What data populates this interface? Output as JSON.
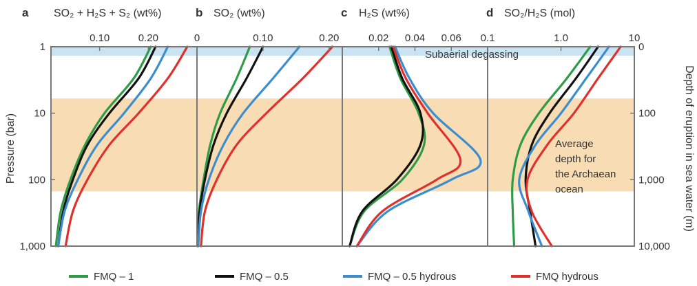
{
  "colors": {
    "subaerial_band": "#c9e3f2",
    "archaean_band": "#f8dcb4",
    "frame": "#777777",
    "series": {
      "FMQ - 1": "#2e9b46",
      "FMQ - 0.5": "#111111",
      "FMQ - 0.5 hydrous": "#3a8ecf",
      "FMQ hydrous": "#e0302c"
    }
  },
  "chart_data": {
    "type": "line",
    "y_axis_left": {
      "label": "Pressure (bar)",
      "scale": "log",
      "range": [
        1,
        1000
      ],
      "inverted": true,
      "ticks": [
        "1",
        "10",
        "100",
        "1,000"
      ]
    },
    "y_axis_right": {
      "label": "Depth of eruption in sea water (m)",
      "scale": "log",
      "range": [
        0,
        10000
      ],
      "ticks": [
        "0",
        "100",
        "1,000",
        "10,000"
      ]
    },
    "bands": [
      {
        "label": "Subaerial degassing",
        "pressure_range": [
          1,
          1.3
        ]
      },
      {
        "label": "Average depth for the Archaean ocean",
        "pressure_range": [
          6,
          150
        ]
      }
    ],
    "legend": {
      "placement": "bottom",
      "entries": [
        "FMQ – 1",
        "FMQ – 0.5",
        "FMQ – 0.5 hydrous",
        "FMQ hydrous"
      ]
    },
    "panels": [
      {
        "letter": "a",
        "title": "SO₂ + H₂S + S₂ (wt%)",
        "x_range": [
          0,
          0.3
        ],
        "x_scale": "linear",
        "x_ticks": [
          0.1,
          0.2
        ],
        "x_tick_labels": [
          "0.10",
          "0.20"
        ],
        "series": [
          {
            "name": "FMQ - 1",
            "points": [
              [
                0.205,
                1
              ],
              [
                0.17,
                3
              ],
              [
                0.11,
                10
              ],
              [
                0.07,
                30
              ],
              [
                0.04,
                100
              ],
              [
                0.02,
                300
              ],
              [
                0.01,
                1000
              ]
            ]
          },
          {
            "name": "FMQ - 0.5",
            "points": [
              [
                0.215,
                1
              ],
              [
                0.18,
                3
              ],
              [
                0.12,
                10
              ],
              [
                0.075,
                30
              ],
              [
                0.045,
                100
              ],
              [
                0.025,
                300
              ],
              [
                0.015,
                1000
              ]
            ]
          },
          {
            "name": "FMQ - 0.5 hydrous",
            "points": [
              [
                0.24,
                1
              ],
              [
                0.205,
                3
              ],
              [
                0.15,
                10
              ],
              [
                0.095,
                30
              ],
              [
                0.055,
                100
              ],
              [
                0.028,
                300
              ],
              [
                0.015,
                1000
              ]
            ]
          },
          {
            "name": "FMQ hydrous",
            "points": [
              [
                0.28,
                1
              ],
              [
                0.24,
                3
              ],
              [
                0.18,
                10
              ],
              [
                0.12,
                30
              ],
              [
                0.075,
                100
              ],
              [
                0.045,
                300
              ],
              [
                0.03,
                1000
              ]
            ]
          }
        ]
      },
      {
        "letter": "b",
        "title": "SO₂ (wt%)",
        "x_range": [
          0,
          0.22
        ],
        "x_scale": "linear",
        "x_ticks": [
          0,
          0.1,
          0.2
        ],
        "x_tick_labels": [
          "0",
          "0.10",
          "0.20"
        ],
        "series": [
          {
            "name": "FMQ - 1",
            "points": [
              [
                0.08,
                1
              ],
              [
                0.06,
                3
              ],
              [
                0.035,
                10
              ],
              [
                0.02,
                30
              ],
              [
                0.01,
                100
              ],
              [
                0.003,
                300
              ],
              [
                0.001,
                1000
              ]
            ]
          },
          {
            "name": "FMQ - 0.5",
            "points": [
              [
                0.1,
                1
              ],
              [
                0.075,
                3
              ],
              [
                0.045,
                10
              ],
              [
                0.025,
                30
              ],
              [
                0.012,
                100
              ],
              [
                0.004,
                300
              ],
              [
                0.001,
                1000
              ]
            ]
          },
          {
            "name": "FMQ - 0.5 hydrous",
            "points": [
              [
                0.155,
                1
              ],
              [
                0.115,
                3
              ],
              [
                0.07,
                10
              ],
              [
                0.04,
                30
              ],
              [
                0.018,
                100
              ],
              [
                0.006,
                300
              ],
              [
                0.002,
                1000
              ]
            ]
          },
          {
            "name": "FMQ hydrous",
            "points": [
              [
                0.205,
                1
              ],
              [
                0.16,
                3
              ],
              [
                0.105,
                10
              ],
              [
                0.06,
                30
              ],
              [
                0.03,
                100
              ],
              [
                0.012,
                300
              ],
              [
                0.006,
                1000
              ]
            ]
          }
        ]
      },
      {
        "letter": "c",
        "title": "H₂S (wt%)",
        "x_range": [
          0.0,
          0.08
        ],
        "x_scale": "linear",
        "x_ticks": [
          0.02,
          0.04,
          0.06
        ],
        "x_tick_labels": [
          "0.02",
          "0.04",
          "0.06"
        ],
        "series": [
          {
            "name": "FMQ - 1",
            "points": [
              [
                0.026,
                1
              ],
              [
                0.032,
                3
              ],
              [
                0.042,
                10
              ],
              [
                0.045,
                30
              ],
              [
                0.033,
                100
              ],
              [
                0.012,
                300
              ],
              [
                0.004,
                1000
              ]
            ]
          },
          {
            "name": "FMQ - 0.5",
            "points": [
              [
                0.027,
                1
              ],
              [
                0.033,
                3
              ],
              [
                0.043,
                10
              ],
              [
                0.043,
                30
              ],
              [
                0.03,
                100
              ],
              [
                0.011,
                300
              ],
              [
                0.004,
                1000
              ]
            ]
          },
          {
            "name": "FMQ - 0.5 hydrous",
            "points": [
              [
                0.029,
                1
              ],
              [
                0.037,
                3
              ],
              [
                0.05,
                10
              ],
              [
                0.076,
                50
              ],
              [
                0.06,
                100
              ],
              [
                0.025,
                300
              ],
              [
                0.008,
                1000
              ]
            ]
          },
          {
            "name": "FMQ hydrous",
            "points": [
              [
                0.028,
                1
              ],
              [
                0.035,
                3
              ],
              [
                0.047,
                10
              ],
              [
                0.065,
                50
              ],
              [
                0.052,
                100
              ],
              [
                0.022,
                300
              ],
              [
                0.008,
                1000
              ]
            ]
          }
        ]
      },
      {
        "letter": "d",
        "title": "SO₂/H₂S (mol)",
        "x_range": [
          0.1,
          10
        ],
        "x_scale": "log",
        "x_ticks": [
          0.1,
          1,
          10
        ],
        "x_tick_labels": [
          "0.1",
          "1.0",
          "10"
        ],
        "series": [
          {
            "name": "FMQ - 1",
            "points": [
              [
                2.5,
                1
              ],
              [
                1.2,
                3
              ],
              [
                0.5,
                10
              ],
              [
                0.28,
                30
              ],
              [
                0.22,
                100
              ],
              [
                0.22,
                300
              ],
              [
                0.23,
                1000
              ]
            ]
          },
          {
            "name": "FMQ - 0.5",
            "points": [
              [
                3.2,
                1
              ],
              [
                1.6,
                3
              ],
              [
                0.7,
                10
              ],
              [
                0.4,
                30
              ],
              [
                0.33,
                100
              ],
              [
                0.38,
                300
              ],
              [
                0.45,
                1000
              ]
            ]
          },
          {
            "name": "FMQ - 0.5 hydrous",
            "points": [
              [
                4.5,
                1
              ],
              [
                2.2,
                3
              ],
              [
                1.0,
                10
              ],
              [
                0.45,
                30
              ],
              [
                0.27,
                100
              ],
              [
                0.36,
                300
              ],
              [
                0.55,
                1000
              ]
            ]
          },
          {
            "name": "FMQ hydrous",
            "points": [
              [
                6.5,
                1
              ],
              [
                3.2,
                3
              ],
              [
                1.5,
                10
              ],
              [
                0.65,
                30
              ],
              [
                0.35,
                100
              ],
              [
                0.4,
                300
              ],
              [
                0.75,
                1000
              ]
            ]
          }
        ]
      }
    ]
  }
}
